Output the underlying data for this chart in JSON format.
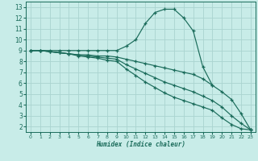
{
  "xlabel": "Humidex (Indice chaleur)",
  "xlim": [
    -0.5,
    23.5
  ],
  "ylim": [
    1.5,
    13.5
  ],
  "xticks": [
    0,
    1,
    2,
    3,
    4,
    5,
    6,
    7,
    8,
    9,
    10,
    11,
    12,
    13,
    14,
    15,
    16,
    17,
    18,
    19,
    20,
    21,
    22,
    23
  ],
  "yticks": [
    2,
    3,
    4,
    5,
    6,
    7,
    8,
    9,
    10,
    11,
    12,
    13
  ],
  "bg_color": "#c8ece8",
  "grid_color": "#aad4d0",
  "line_color": "#1a6b5a",
  "lines": [
    {
      "x": [
        0,
        1,
        2,
        3,
        4,
        5,
        6,
        7,
        8,
        9,
        10,
        11,
        12,
        13,
        14,
        15,
        16,
        17,
        18,
        19,
        20,
        21,
        22,
        23
      ],
      "y": [
        9,
        9,
        9,
        9,
        9,
        9,
        9,
        9,
        9,
        9,
        9.4,
        10.0,
        11.5,
        12.5,
        12.8,
        12.8,
        12.0,
        10.8,
        7.5,
        5.8,
        null,
        null,
        null,
        1.7
      ]
    },
    {
      "x": [
        0,
        1,
        2,
        3,
        4,
        5,
        6,
        7,
        8,
        9,
        10,
        11,
        12,
        13,
        14,
        15,
        16,
        17,
        18,
        19,
        20,
        21,
        22,
        23
      ],
      "y": [
        9,
        9,
        8.9,
        8.8,
        8.7,
        8.6,
        8.6,
        8.5,
        8.5,
        8.4,
        8.2,
        8.0,
        7.8,
        7.6,
        7.4,
        7.2,
        7.0,
        6.8,
        6.4,
        5.8,
        5.2,
        4.5,
        3.2,
        1.7
      ]
    },
    {
      "x": [
        0,
        1,
        2,
        3,
        4,
        5,
        6,
        7,
        8,
        9,
        10,
        11,
        12,
        13,
        14,
        15,
        16,
        17,
        18,
        19,
        20,
        21,
        22,
        23
      ],
      "y": [
        9,
        9,
        8.9,
        8.8,
        8.7,
        8.6,
        8.5,
        8.4,
        8.3,
        8.2,
        7.7,
        7.3,
        6.9,
        6.5,
        6.1,
        5.8,
        5.5,
        5.2,
        4.8,
        4.4,
        3.8,
        3.0,
        2.3,
        1.7
      ]
    },
    {
      "x": [
        0,
        1,
        2,
        3,
        4,
        5,
        6,
        7,
        8,
        9,
        10,
        11,
        12,
        13,
        14,
        15,
        16,
        17,
        18,
        19,
        20,
        21,
        22,
        23
      ],
      "y": [
        9,
        9,
        8.9,
        8.8,
        8.7,
        8.5,
        8.4,
        8.3,
        8.1,
        8.0,
        7.3,
        6.7,
        6.1,
        5.6,
        5.1,
        4.7,
        4.4,
        4.1,
        3.8,
        3.5,
        2.8,
        2.2,
        1.8,
        1.7
      ]
    }
  ]
}
